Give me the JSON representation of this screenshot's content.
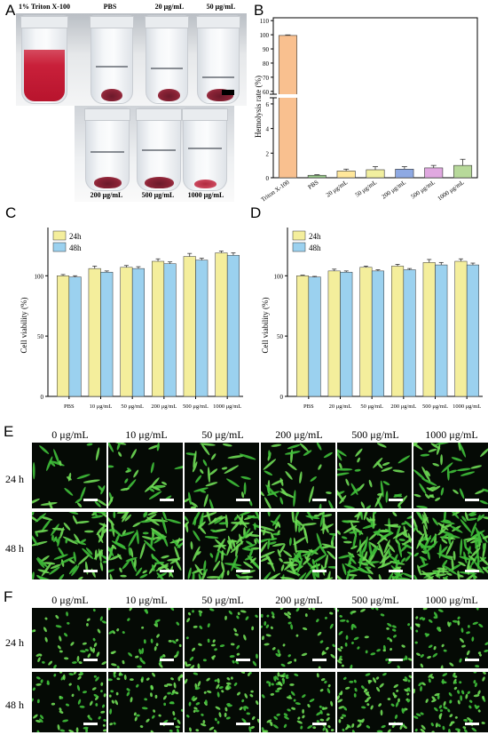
{
  "panels": {
    "A": "A",
    "B": "B",
    "C": "C",
    "D": "D",
    "E": "E",
    "F": "F"
  },
  "panel_a": {
    "top_row_labels": [
      "1% Triton X-100",
      "PBS",
      "20 μg/mL",
      "50 μg/mL"
    ],
    "bottom_row_labels": [
      "200 μg/mL",
      "500 μg/mL",
      "1000 μg/mL"
    ]
  },
  "micro": {
    "col_labels": [
      "0 μg/mL",
      "10 μg/mL",
      "50 μg/mL",
      "200 μg/mL",
      "500 μg/mL",
      "1000 μg/mL"
    ],
    "row_labels": [
      "24 h",
      "48 h"
    ]
  },
  "chart_data": [
    {
      "id": "B",
      "type": "bar",
      "ylabel": "Hemolysis rate (%)",
      "categories": [
        "Triton X-100",
        "PBS",
        "20 μg/mL",
        "50 μg/mL",
        "200 μg/mL",
        "500 μg/mL",
        "1000 μg/mL"
      ],
      "values": [
        99.5,
        0.2,
        0.55,
        0.65,
        0.7,
        0.8,
        1.0
      ],
      "errors": [
        0.4,
        0.05,
        0.15,
        0.25,
        0.2,
        0.2,
        0.5
      ],
      "colors": [
        "#f9c08f",
        "#9ac98c",
        "#ffe79b",
        "#f1ef9f",
        "#8ea9e3",
        "#e0a8e0",
        "#b7d99a"
      ],
      "yticks_lower": [
        0,
        2,
        4,
        6
      ],
      "yticks_upper": [
        60,
        70,
        80,
        90,
        100,
        110
      ],
      "axis_break": [
        6.5,
        58
      ]
    },
    {
      "id": "C",
      "type": "bar",
      "ylabel": "Cell viability (%)",
      "categories": [
        "PBS",
        "10 μg/mL",
        "50 μg/mL",
        "200 μg/mL",
        "500 μg/mL",
        "1000 μg/mL"
      ],
      "series": [
        {
          "name": "24h",
          "color": "#f4ee9c",
          "values": [
            100,
            106,
            107,
            112,
            116,
            119
          ],
          "errors": [
            1,
            2,
            1.5,
            2,
            2.5,
            1.5
          ]
        },
        {
          "name": "48h",
          "color": "#9bd1ef",
          "values": [
            99,
            103,
            106,
            110,
            113,
            117
          ],
          "errors": [
            1,
            1,
            1.5,
            1.5,
            1.5,
            2
          ]
        }
      ],
      "ylim": [
        0,
        140
      ],
      "yticks": [
        0,
        50,
        100
      ],
      "legend": "top-left"
    },
    {
      "id": "D",
      "type": "bar",
      "ylabel": "Cell viability (%)",
      "categories": [
        "PBS",
        "20 μg/mL",
        "50 μg/mL",
        "200 μg/mL",
        "500 μg/mL",
        "1000 μg/mL"
      ],
      "series": [
        {
          "name": "24h",
          "color": "#f4ee9c",
          "values": [
            100,
            104,
            107,
            108,
            111,
            112
          ],
          "errors": [
            0.5,
            1.5,
            1,
            1.5,
            2.5,
            2
          ]
        },
        {
          "name": "48h",
          "color": "#9bd1ef",
          "values": [
            99,
            103,
            104,
            105,
            109,
            109
          ],
          "errors": [
            0.5,
            1,
            1,
            1,
            2,
            1.5
          ]
        }
      ],
      "ylim": [
        0,
        140
      ],
      "yticks": [
        0,
        50,
        100
      ],
      "legend": "top-left"
    }
  ]
}
